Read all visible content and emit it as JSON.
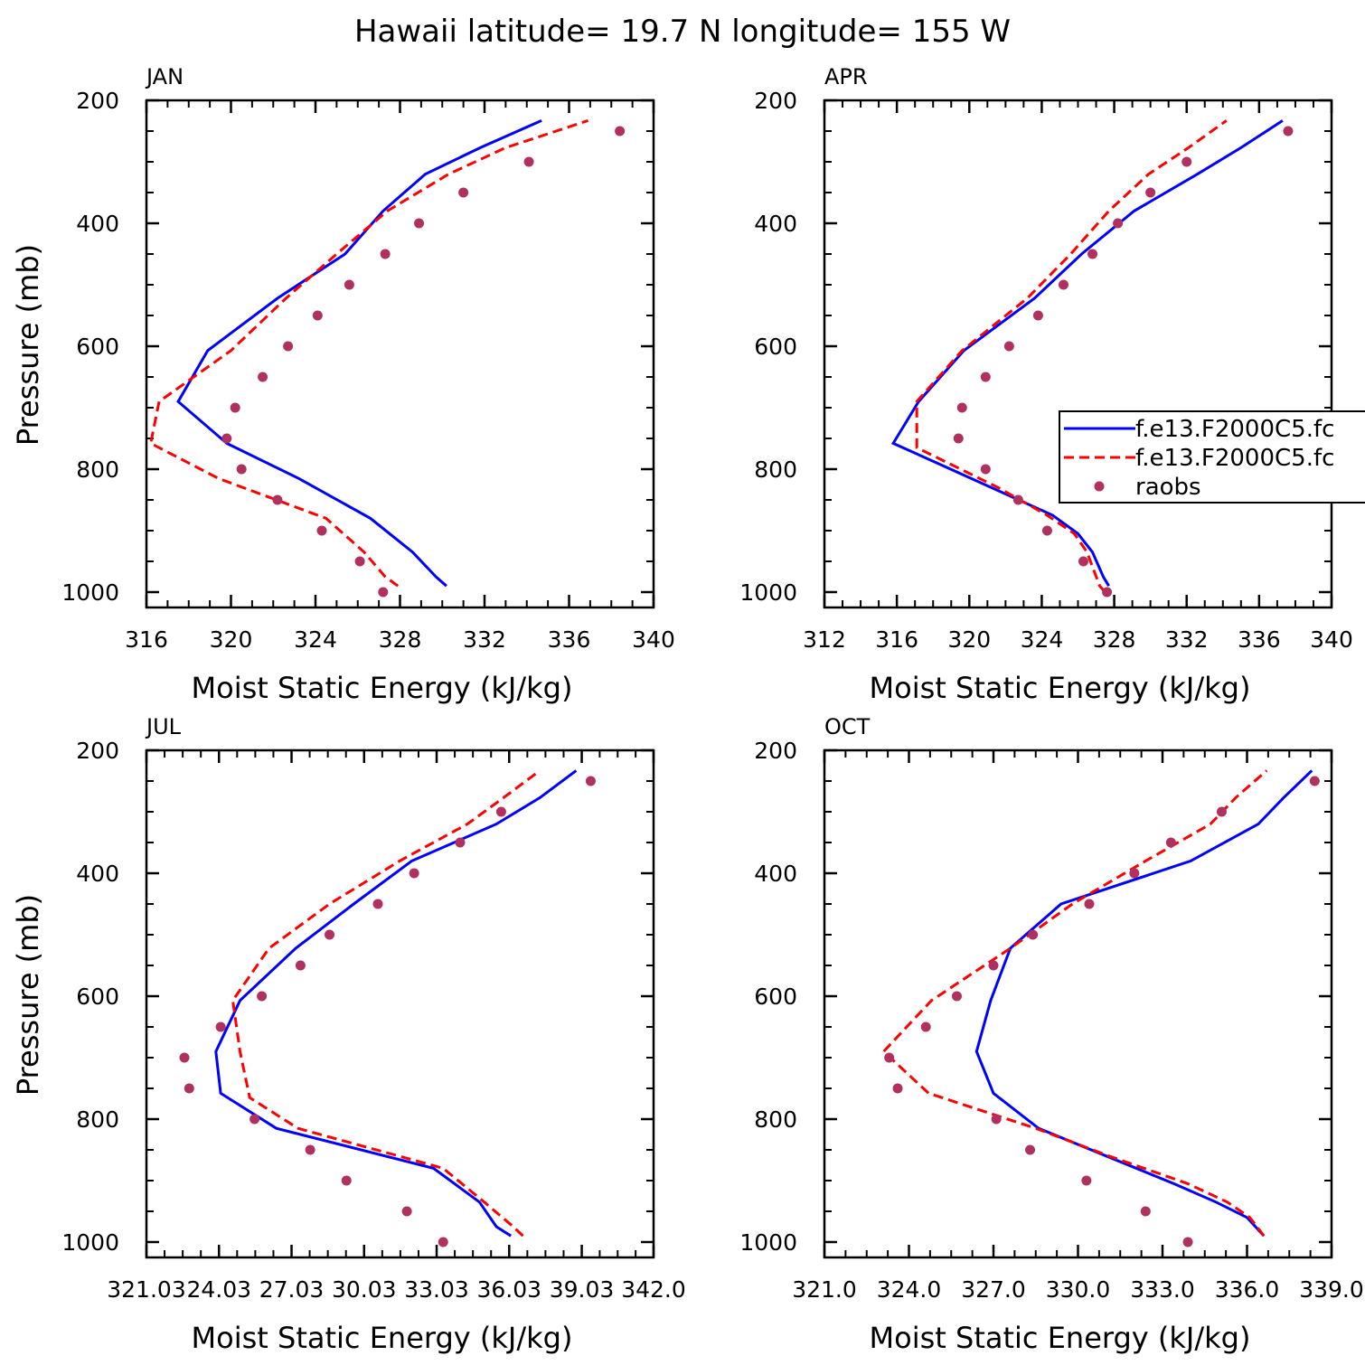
{
  "title": "Hawaii  latitude= 19.7 N longitude= 155 W",
  "colors": {
    "model1": "#0000ff",
    "model2": "#ff0000",
    "raobs": "#b03060",
    "axis": "#000000"
  },
  "legend": {
    "entries": [
      {
        "label": "f.e13.F2000C5.fc",
        "style": "solid",
        "color": "#0000ff"
      },
      {
        "label": "f.e13.F2000C5.fc",
        "style": "dashed",
        "color": "#ff0000"
      },
      {
        "label": "raobs",
        "style": "marker",
        "color": "#b03060"
      }
    ]
  },
  "chart_data": [
    {
      "type": "line",
      "panel": "JAN",
      "xlabel": "Moist Static Energy (kJ/kg)",
      "ylabel": "Pressure (mb)",
      "xlim": [
        316,
        340
      ],
      "ylim": [
        200,
        1025
      ],
      "xticks": [
        316,
        320,
        324,
        328,
        332,
        336,
        340
      ],
      "xtick_labels": [
        "316",
        "320",
        "324",
        "328",
        "332",
        "336",
        "340"
      ],
      "yticks": [
        200,
        400,
        600,
        800,
        1000
      ],
      "ytick_labels": [
        "200",
        "400",
        "600",
        "800",
        "1000"
      ],
      "series": [
        {
          "name": "f.e13.F2000C5.fc",
          "style": "solid",
          "points": [
            [
              330.2,
              990
            ],
            [
              329.7,
              975
            ],
            [
              328.6,
              935
            ],
            [
              326.6,
              880
            ],
            [
              323.2,
              815
            ],
            [
              319.8,
              758
            ],
            [
              317.5,
              690
            ],
            [
              318.9,
              607
            ],
            [
              322.2,
              522
            ],
            [
              325.4,
              450
            ],
            [
              327.2,
              380
            ],
            [
              329.2,
              320
            ],
            [
              331.8,
              277
            ],
            [
              334.7,
              233
            ]
          ]
        },
        {
          "name": "f.e13.F2000C5.fc",
          "style": "dashed",
          "points": [
            [
              327.9,
              990
            ],
            [
              327.3,
              975
            ],
            [
              326.3,
              935
            ],
            [
              324.5,
              880
            ],
            [
              319.4,
              815
            ],
            [
              316.2,
              758
            ],
            [
              316.6,
              690
            ],
            [
              320.0,
              607
            ],
            [
              322.6,
              522
            ],
            [
              325.0,
              450
            ],
            [
              327.4,
              380
            ],
            [
              330.3,
              320
            ],
            [
              333.0,
              277
            ],
            [
              336.9,
              233
            ]
          ]
        },
        {
          "name": "raobs",
          "style": "marker",
          "points": [
            [
              338.4,
              250
            ],
            [
              334.1,
              300
            ],
            [
              331.0,
              350
            ],
            [
              328.9,
              400
            ],
            [
              327.3,
              450
            ],
            [
              325.6,
              500
            ],
            [
              324.1,
              550
            ],
            [
              322.7,
              600
            ],
            [
              321.5,
              650
            ],
            [
              320.2,
              700
            ],
            [
              319.8,
              750
            ],
            [
              320.5,
              800
            ],
            [
              322.2,
              850
            ],
            [
              324.3,
              900
            ],
            [
              326.1,
              950
            ],
            [
              327.2,
              1000
            ]
          ]
        }
      ]
    },
    {
      "type": "line",
      "panel": "APR",
      "xlabel": "Moist Static Energy (kJ/kg)",
      "ylabel": "",
      "xlim": [
        312,
        340
      ],
      "ylim": [
        200,
        1025
      ],
      "xticks": [
        312,
        316,
        320,
        324,
        328,
        332,
        336,
        340
      ],
      "xtick_labels": [
        "312",
        "316",
        "320",
        "324",
        "328",
        "332",
        "336",
        "340"
      ],
      "yticks": [
        200,
        400,
        600,
        800,
        1000
      ],
      "ytick_labels": [
        "200",
        "400",
        "600",
        "800",
        "1000"
      ],
      "series": [
        {
          "name": "f.e13.F2000C5.fc",
          "style": "solid",
          "points": [
            [
              327.7,
              990
            ],
            [
              327.4,
              975
            ],
            [
              326.8,
              935
            ],
            [
              326.0,
              905
            ],
            [
              324.6,
              875
            ],
            [
              320.1,
              815
            ],
            [
              315.8,
              758
            ],
            [
              317.2,
              690
            ],
            [
              319.7,
              607
            ],
            [
              323.6,
              522
            ],
            [
              326.2,
              450
            ],
            [
              329.1,
              380
            ],
            [
              332.6,
              320
            ],
            [
              335.0,
              277
            ],
            [
              337.3,
              233
            ]
          ]
        },
        {
          "name": "f.e13.F2000C5.fc",
          "style": "dashed",
          "points": [
            [
              327.5,
              1000
            ],
            [
              327.2,
              990
            ],
            [
              326.5,
              935
            ],
            [
              325.8,
              905
            ],
            [
              324.3,
              875
            ],
            [
              321.6,
              830
            ],
            [
              317.1,
              765
            ],
            [
              317.1,
              690
            ],
            [
              319.6,
              607
            ],
            [
              323.2,
              522
            ],
            [
              325.6,
              450
            ],
            [
              327.7,
              380
            ],
            [
              329.9,
              320
            ],
            [
              332.1,
              277
            ],
            [
              334.2,
              233
            ]
          ]
        },
        {
          "name": "raobs",
          "style": "marker",
          "points": [
            [
              337.6,
              250
            ],
            [
              332.0,
              300
            ],
            [
              330.0,
              350
            ],
            [
              328.2,
              400
            ],
            [
              326.8,
              450
            ],
            [
              325.2,
              500
            ],
            [
              323.8,
              550
            ],
            [
              322.2,
              600
            ],
            [
              320.9,
              650
            ],
            [
              319.6,
              700
            ],
            [
              319.4,
              750
            ],
            [
              320.9,
              800
            ],
            [
              322.7,
              850
            ],
            [
              324.3,
              900
            ],
            [
              326.3,
              950
            ],
            [
              327.6,
              1000
            ]
          ]
        }
      ]
    },
    {
      "type": "line",
      "panel": "JUL",
      "xlabel": "Moist Static Energy (kJ/kg)",
      "ylabel": "Pressure (mb)",
      "xlim": [
        321.03,
        342.0
      ],
      "ylim": [
        200,
        1025
      ],
      "xticks": [
        321.03,
        324.03,
        327.03,
        330.03,
        333.03,
        336.03,
        339.03,
        342.0
      ],
      "xtick_labels": [
        "321.03",
        "24.03",
        "27.03",
        "30.03",
        "33.03",
        "36.03",
        "39.03",
        "342.0"
      ],
      "series": [
        {
          "name": "f.e13.F2000C5.fc",
          "style": "solid",
          "points": [
            [
              336.1,
              990
            ],
            [
              335.5,
              975
            ],
            [
              334.8,
              935
            ],
            [
              332.9,
              880
            ],
            [
              326.4,
              815
            ],
            [
              324.1,
              758
            ],
            [
              323.9,
              690
            ],
            [
              324.9,
              607
            ],
            [
              327.2,
              522
            ],
            [
              329.6,
              450
            ],
            [
              332.0,
              380
            ],
            [
              335.5,
              320
            ],
            [
              337.3,
              277
            ],
            [
              338.8,
              233
            ]
          ]
        },
        {
          "name": "f.e13.F2000C5.fc",
          "style": "dashed",
          "points": [
            [
              336.6,
              990
            ],
            [
              336.2,
              975
            ],
            [
              335.0,
              935
            ],
            [
              333.3,
              880
            ],
            [
              327.3,
              815
            ],
            [
              325.3,
              765
            ],
            [
              324.9,
              690
            ],
            [
              324.6,
              607
            ],
            [
              326.1,
              522
            ],
            [
              328.6,
              450
            ],
            [
              331.5,
              380
            ],
            [
              334.3,
              320
            ],
            [
              335.8,
              277
            ],
            [
              337.3,
              233
            ]
          ]
        },
        {
          "name": "raobs",
          "style": "marker",
          "points": [
            [
              339.4,
              250
            ],
            [
              335.7,
              300
            ],
            [
              334.0,
              350
            ],
            [
              332.1,
              400
            ],
            [
              330.6,
              450
            ],
            [
              328.6,
              500
            ],
            [
              327.4,
              550
            ],
            [
              325.8,
              600
            ],
            [
              324.1,
              650
            ],
            [
              322.6,
              700
            ],
            [
              322.8,
              750
            ],
            [
              325.5,
              800
            ],
            [
              327.8,
              850
            ],
            [
              329.3,
              900
            ],
            [
              331.8,
              950
            ],
            [
              333.3,
              1000
            ]
          ]
        }
      ]
    },
    {
      "type": "line",
      "panel": "OCT",
      "xlabel": "Moist Static Energy (kJ/kg)",
      "ylabel": "",
      "xlim": [
        321.0,
        339.0
      ],
      "ylim": [
        200,
        1025
      ],
      "xticks": [
        321.0,
        324.0,
        327.0,
        330.0,
        333.0,
        336.0,
        339.0
      ],
      "xtick_labels": [
        "321.0",
        "324.0",
        "327.0",
        "330.0",
        "333.0",
        "336.0",
        "339.0"
      ],
      "series": [
        {
          "name": "f.e13.F2000C5.fc",
          "style": "solid",
          "points": [
            [
              336.6,
              990
            ],
            [
              336.0,
              960
            ],
            [
              334.9,
              935
            ],
            [
              333.4,
              905
            ],
            [
              331.0,
              860
            ],
            [
              328.6,
              815
            ],
            [
              327.0,
              758
            ],
            [
              326.4,
              690
            ],
            [
              326.9,
              607
            ],
            [
              327.6,
              522
            ],
            [
              329.4,
              450
            ],
            [
              334.0,
              380
            ],
            [
              336.4,
              320
            ],
            [
              337.3,
              277
            ],
            [
              338.3,
              233
            ]
          ]
        },
        {
          "name": "f.e13.F2000C5.fc",
          "style": "dashed",
          "points": [
            [
              336.6,
              990
            ],
            [
              336.1,
              960
            ],
            [
              335.3,
              935
            ],
            [
              333.9,
              905
            ],
            [
              331.1,
              860
            ],
            [
              328.5,
              815
            ],
            [
              324.7,
              758
            ],
            [
              323.1,
              690
            ],
            [
              324.8,
              607
            ],
            [
              327.6,
              522
            ],
            [
              329.8,
              450
            ],
            [
              332.4,
              380
            ],
            [
              334.7,
              320
            ],
            [
              335.6,
              277
            ],
            [
              336.7,
              233
            ]
          ]
        },
        {
          "name": "raobs",
          "style": "marker",
          "points": [
            [
              338.4,
              250
            ],
            [
              335.1,
              300
            ],
            [
              333.3,
              350
            ],
            [
              332.0,
              400
            ],
            [
              330.4,
              450
            ],
            [
              328.4,
              500
            ],
            [
              327.0,
              550
            ],
            [
              325.7,
              600
            ],
            [
              324.6,
              650
            ],
            [
              323.3,
              700
            ],
            [
              323.6,
              750
            ],
            [
              327.1,
              800
            ],
            [
              328.3,
              850
            ],
            [
              330.3,
              900
            ],
            [
              332.4,
              950
            ],
            [
              333.9,
              1000
            ]
          ]
        }
      ]
    }
  ]
}
